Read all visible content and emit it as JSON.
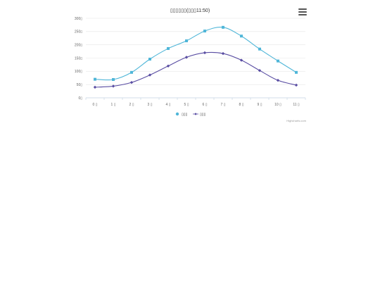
{
  "chart_data": {
    "type": "line",
    "title": "▯▯▯▯▯▯(▯▯▯11:50)",
    "categories": [
      "0 ▯",
      "1 ▯",
      "2 ▯",
      "3 ▯",
      "4 ▯",
      "5 ▯",
      "6 ▯",
      "7 ▯",
      "8 ▯",
      "9 ▯",
      "10 ▯",
      "11 ▯"
    ],
    "ylim": [
      0,
      300
    ],
    "yticks": [
      "0▯",
      "50▯",
      "100▯",
      "150▯",
      "200▯",
      "250▯",
      "300▯"
    ],
    "grid": true,
    "legend_position": "bottom-center",
    "series": [
      {
        "name": "▯▯▯",
        "color": "#4fb6d8",
        "marker": "square",
        "values": [
          70,
          69,
          96,
          146,
          186,
          215,
          252,
          266,
          233,
          184,
          139,
          96
        ]
      },
      {
        "name": "▯▯▯",
        "color": "#5a4ea3",
        "marker": "diamond",
        "values": [
          40,
          44,
          58,
          86,
          120,
          153,
          170,
          167,
          142,
          103,
          66,
          48
        ]
      }
    ]
  },
  "toolbar": {
    "menu_icon": "hamburger-menu-icon"
  },
  "credits": "Highcharts.com"
}
